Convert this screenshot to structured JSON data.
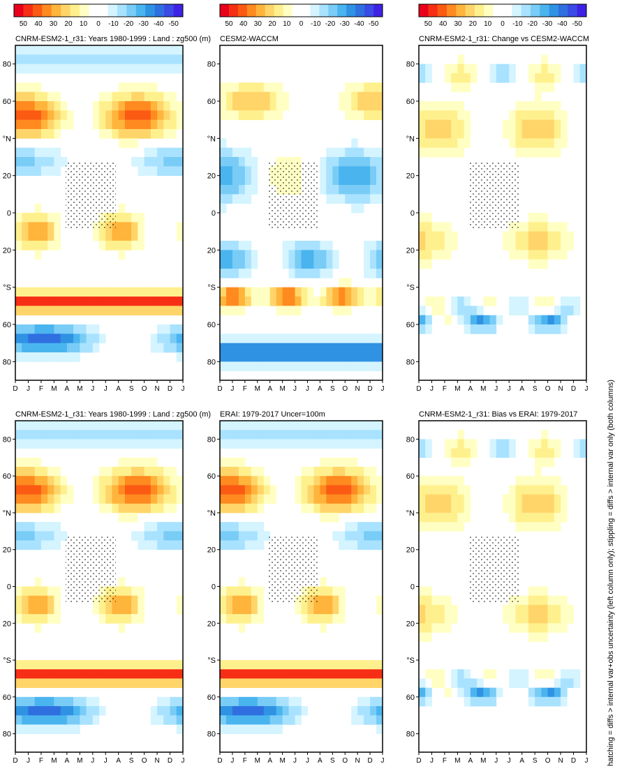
{
  "caption": "hatching = diffs > internal var+obs uncertainty (left column only); stippling = diffs > internal var only (both columns)",
  "colorbar": {
    "tick_labels": [
      "50",
      "40",
      "30",
      "20",
      "10",
      "0",
      "-10",
      "-20",
      "-30",
      "-40",
      "-50"
    ],
    "colors": [
      "#e8001c",
      "#f62e16",
      "#fb5a13",
      "#ff8a20",
      "#ffb43c",
      "#ffd56a",
      "#fff08e",
      "#ffffc4",
      "#ffffff",
      "#ffffff",
      "#d4f4ff",
      "#a9e2ff",
      "#78ccf6",
      "#4ab4ef",
      "#2f92e3",
      "#2f6fe0",
      "#3a4ae4",
      "#3e22e4"
    ]
  },
  "axes": {
    "lat_ticks": [
      "80",
      "60",
      "°N",
      "20",
      "0",
      "20",
      "°S",
      "60",
      "80"
    ],
    "month_ticks": [
      "D",
      "J",
      "F",
      "M",
      "A",
      "M",
      "J",
      "J",
      "A",
      "S",
      "O",
      "N",
      "D",
      "J"
    ]
  },
  "chart_data": [
    {
      "type": "heatmap",
      "title": "CNRM-ESM2-1_r31: Years 1980-1999 : Land : zg500 (m)",
      "x": "month",
      "y": "latitude",
      "ylim": [
        -90,
        90
      ],
      "clim": [
        -55,
        55
      ]
    },
    {
      "type": "heatmap",
      "title": "CNRM-ESM2-1_r31: Years 1980-1999 : Land : zg500 (m)",
      "x": "month",
      "y": "latitude",
      "ylim": [
        -90,
        90
      ],
      "clim": [
        -55,
        55
      ]
    },
    {
      "type": "heatmap",
      "title": "ERAI: 1979-2017 Uncer=100m",
      "x": "month",
      "y": "latitude",
      "ylim": [
        -90,
        90
      ],
      "clim": [
        -55,
        55
      ]
    },
    {
      "type": "heatmap",
      "title": "CESM2-WACCM",
      "x": "month",
      "y": "latitude",
      "ylim": [
        -90,
        90
      ],
      "clim": [
        -55,
        55
      ]
    },
    {
      "type": "heatmap",
      "title": "CNRM-ESM2-1_r31: Bias vs ERAI: 1979-2017",
      "x": "month",
      "y": "latitude",
      "ylim": [
        -90,
        90
      ],
      "clim": [
        -55,
        55
      ]
    },
    {
      "type": "heatmap",
      "title": "CNRM-ESM2-1_r31: Change vs CESM2-WACCM",
      "x": "month",
      "y": "latitude",
      "ylim": [
        -90,
        90
      ],
      "clim": [
        -55,
        55
      ]
    }
  ]
}
